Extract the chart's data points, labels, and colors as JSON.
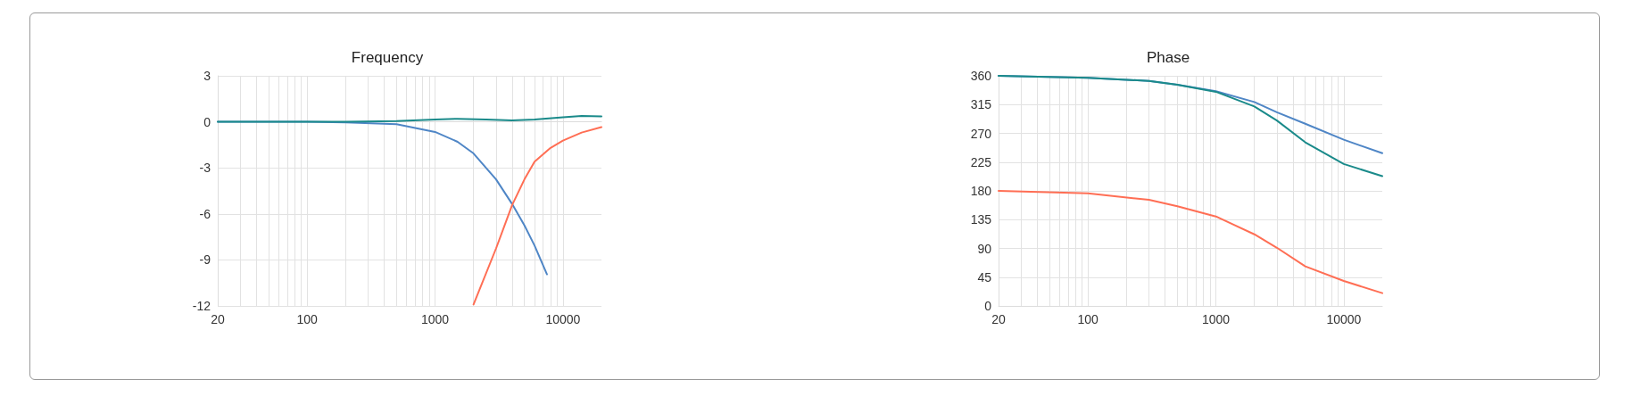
{
  "chart_data": [
    {
      "type": "line",
      "title": "Frequency",
      "log": "x",
      "grid": true,
      "legend": false,
      "marker": "none",
      "line_style": "solid",
      "xlim": [
        20,
        20000
      ],
      "ylim": [
        -12,
        3
      ],
      "yticks": [
        -12,
        -9,
        -6,
        -3,
        0,
        3
      ],
      "xticks": [
        20,
        {
          "value": 30,
          "label": null
        },
        {
          "value": 40,
          "label": null
        },
        {
          "value": 50,
          "label": null
        },
        {
          "value": 60,
          "label": null
        },
        {
          "value": 70,
          "label": null
        },
        {
          "value": 80,
          "label": null
        },
        {
          "value": 90,
          "label": null
        },
        100,
        {
          "value": 200,
          "label": null
        },
        {
          "value": 300,
          "label": null
        },
        {
          "value": 400,
          "label": null
        },
        {
          "value": 500,
          "label": null
        },
        {
          "value": 600,
          "label": null
        },
        {
          "value": 700,
          "label": null
        },
        {
          "value": 800,
          "label": null
        },
        {
          "value": 900,
          "label": null
        },
        1000,
        {
          "value": 2000,
          "label": null
        },
        {
          "value": 3000,
          "label": null
        },
        {
          "value": 4000,
          "label": null
        },
        {
          "value": 5000,
          "label": null
        },
        {
          "value": 6000,
          "label": null
        },
        {
          "value": 7000,
          "label": null
        },
        {
          "value": 8000,
          "label": null
        },
        {
          "value": 9000,
          "label": null
        },
        10000
      ],
      "series": [
        {
          "color": "#4f86c6",
          "x": [
            20,
            100,
            200,
            500,
            1000,
            1500,
            2000,
            3000,
            4000,
            5000,
            6000,
            7500
          ],
          "values": [
            0,
            0,
            -0.04,
            -0.15,
            -0.66,
            -1.3,
            -2.06,
            -3.75,
            -5.35,
            -6.75,
            -8.07,
            -9.94
          ]
        },
        {
          "color": "#ff6e54",
          "x": [
            2000,
            3000,
            4000,
            5000,
            6000,
            8000,
            10000,
            14000,
            20000
          ],
          "values": [
            -11.9,
            -8.25,
            -5.44,
            -3.75,
            -2.6,
            -1.7,
            -1.22,
            -0.7,
            -0.34
          ]
        },
        {
          "color": "#1a8a8a",
          "x": [
            20,
            100,
            200,
            500,
            1000,
            1500,
            2500,
            4000,
            6000,
            10000,
            14000,
            20000
          ],
          "values": [
            0,
            0,
            0,
            0.05,
            0.15,
            0.2,
            0.15,
            0.1,
            0.15,
            0.3,
            0.38,
            0.35
          ]
        }
      ]
    },
    {
      "type": "line",
      "title": "Phase",
      "log": "x",
      "grid": true,
      "legend": false,
      "marker": "none",
      "line_style": "solid",
      "xlim": [
        20,
        20000
      ],
      "ylim": [
        0,
        360
      ],
      "yticks": [
        0,
        45,
        90,
        135,
        180,
        225,
        270,
        315,
        360
      ],
      "xticks": [
        20,
        {
          "value": 30,
          "label": null
        },
        {
          "value": 40,
          "label": null
        },
        {
          "value": 50,
          "label": null
        },
        {
          "value": 60,
          "label": null
        },
        {
          "value": 70,
          "label": null
        },
        {
          "value": 80,
          "label": null
        },
        {
          "value": 90,
          "label": null
        },
        100,
        {
          "value": 200,
          "label": null
        },
        {
          "value": 300,
          "label": null
        },
        {
          "value": 400,
          "label": null
        },
        {
          "value": 500,
          "label": null
        },
        {
          "value": 600,
          "label": null
        },
        {
          "value": 700,
          "label": null
        },
        {
          "value": 800,
          "label": null
        },
        {
          "value": 900,
          "label": null
        },
        1000,
        {
          "value": 2000,
          "label": null
        },
        {
          "value": 3000,
          "label": null
        },
        {
          "value": 4000,
          "label": null
        },
        {
          "value": 5000,
          "label": null
        },
        {
          "value": 6000,
          "label": null
        },
        {
          "value": 7000,
          "label": null
        },
        {
          "value": 8000,
          "label": null
        },
        {
          "value": 9000,
          "label": null
        },
        10000
      ],
      "series": [
        {
          "color": "#4f86c6",
          "x": [
            20,
            100,
            300,
            500,
            1000,
            2000,
            3000,
            5000,
            10000,
            20000
          ],
          "values": [
            360,
            357,
            352,
            346,
            336,
            319,
            303,
            285,
            260,
            239
          ]
        },
        {
          "color": "#1a8a8a",
          "x": [
            20,
            100,
            300,
            500,
            1000,
            2000,
            3000,
            5000,
            10000,
            20000
          ],
          "values": [
            360,
            357,
            352,
            346,
            335,
            312,
            290,
            256,
            222,
            203
          ]
        },
        {
          "color": "#ff6e54",
          "x": [
            20,
            100,
            300,
            500,
            1000,
            2000,
            3000,
            5000,
            10000,
            20000
          ],
          "values": [
            180,
            176,
            166,
            156,
            140,
            112,
            91,
            62,
            39,
            20
          ]
        }
      ]
    }
  ]
}
